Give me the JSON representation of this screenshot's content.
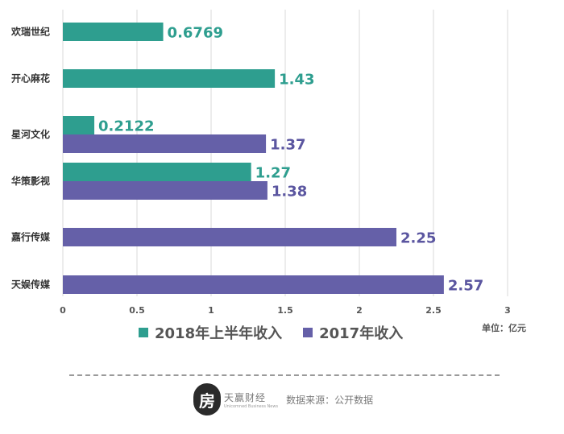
{
  "chart_data": {
    "type": "bar",
    "orientation": "horizontal",
    "categories": [
      "欢瑞世纪",
      "开心麻花",
      "星河文化",
      "华策影视",
      "嘉行传媒",
      "天娱传媒"
    ],
    "series": [
      {
        "name": "2018年上半年收入",
        "color": "#2e9e8f",
        "values": [
          0.6769,
          1.43,
          0.2122,
          1.27,
          null,
          null
        ],
        "labels": [
          "0.6769",
          "1.43",
          "0.2122",
          "1.27",
          "",
          ""
        ]
      },
      {
        "name": "2017年收入",
        "color": "#6560a8",
        "values": [
          null,
          null,
          1.37,
          1.38,
          2.25,
          2.57
        ],
        "labels": [
          "",
          "",
          "1.37",
          "1.38",
          "2.25",
          "2.57"
        ]
      }
    ],
    "xlim": [
      0,
      3
    ],
    "xticks": [
      "0",
      "0.5",
      "1",
      "1.5",
      "2",
      "2.5",
      "3"
    ],
    "grid": true,
    "unit": "单位：亿元",
    "legend_position": "bottom"
  },
  "legend": {
    "s2018": "2018年上半年收入",
    "s2017": "2017年收入"
  },
  "unit_label": "单位：亿元",
  "footer": {
    "logo_glyph": "房",
    "brand_name": "天赢财经",
    "brand_sub": "Unicomned Business News",
    "source": "数据来源：公开数据"
  },
  "colors": {
    "teal": "#2e9e8f",
    "purple": "#6560a8",
    "label_teal": "#2e9e8f",
    "label_purple": "#5b56a0"
  }
}
